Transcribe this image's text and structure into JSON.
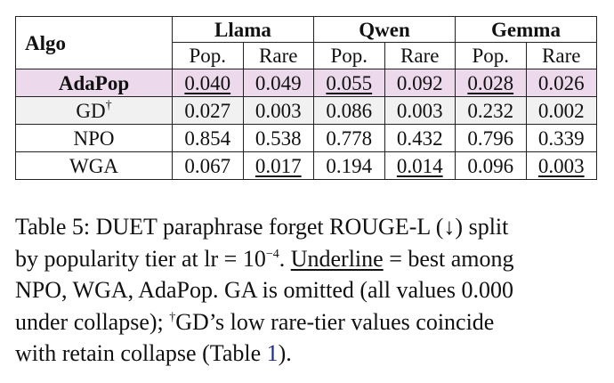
{
  "table": {
    "algo_header": "Algo",
    "models": [
      "Llama",
      "Qwen",
      "Gemma"
    ],
    "subheaders": [
      "Pop.",
      "Rare"
    ],
    "rows": [
      {
        "algo": "AdaPop",
        "dagger": "",
        "bold": true,
        "values": [
          "0.040",
          "0.049",
          "0.055",
          "0.092",
          "0.028",
          "0.026"
        ],
        "underline": [
          true,
          false,
          true,
          false,
          true,
          false
        ]
      },
      {
        "algo": "GD",
        "dagger": "†",
        "bold": false,
        "values": [
          "0.027",
          "0.003",
          "0.086",
          "0.003",
          "0.232",
          "0.002"
        ],
        "underline": [
          false,
          false,
          false,
          false,
          false,
          false
        ]
      },
      {
        "algo": "NPO",
        "dagger": "",
        "bold": false,
        "values": [
          "0.854",
          "0.538",
          "0.778",
          "0.432",
          "0.796",
          "0.339"
        ],
        "underline": [
          false,
          false,
          false,
          false,
          false,
          false
        ]
      },
      {
        "algo": "WGA",
        "dagger": "",
        "bold": false,
        "values": [
          "0.067",
          "0.017",
          "0.194",
          "0.014",
          "0.096",
          "0.003"
        ],
        "underline": [
          false,
          true,
          false,
          true,
          false,
          true
        ]
      }
    ],
    "highlight_color": "#ecd9ec",
    "shade_color": "#f1f1f1"
  },
  "caption": {
    "line1": "Table 5: DUET paraphrase forget ROUGE-L (↓) split",
    "line2_a": "by popularity tier at lr = 10",
    "line2_exp": "−4",
    "line2_b": ". ",
    "underline_word": "Underline",
    "line2_c": " = best among",
    "line3": "NPO, WGA, AdaPop. GA is omitted (all values 0.000",
    "line4_a": "under collapse); ",
    "line4_dagger": "†",
    "line4_b": "GD’s low rare-tier values coincide",
    "line5_a": "with retain collapse (Table ",
    "line5_ref": "1",
    "line5_b": ").",
    "ref_color": "#1a2d8f"
  }
}
